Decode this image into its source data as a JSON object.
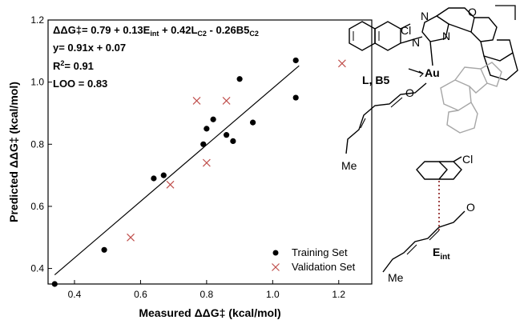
{
  "chart_data": {
    "type": "scatter",
    "xlabel": "Measured ΔΔG‡ (kcal/mol)",
    "ylabel": "Predicted ΔΔG‡ (kcal/mol)",
    "xlim": [
      0.32,
      1.3
    ],
    "ylim": [
      0.35,
      1.2
    ],
    "xticks": [
      "0.4",
      "0.6",
      "0.8",
      "1.0",
      "1.2"
    ],
    "yticks": [
      "0.4",
      "0.6",
      "0.8",
      "1.0",
      "1.2"
    ],
    "grid": false,
    "legend_position": "bottom-right",
    "fit_line": {
      "slope": 0.91,
      "intercept": 0.07,
      "x_range": [
        0.34,
        1.08
      ]
    },
    "series": [
      {
        "name": "Training Set",
        "marker": "filled-circle",
        "color": "#000000",
        "points": [
          [
            0.34,
            0.35
          ],
          [
            0.49,
            0.46
          ],
          [
            0.64,
            0.69
          ],
          [
            0.67,
            0.7
          ],
          [
            0.79,
            0.8
          ],
          [
            0.8,
            0.85
          ],
          [
            0.82,
            0.88
          ],
          [
            0.86,
            0.83
          ],
          [
            0.88,
            0.81
          ],
          [
            0.9,
            1.01
          ],
          [
            0.94,
            0.87
          ],
          [
            1.07,
            0.95
          ],
          [
            1.07,
            1.07
          ]
        ]
      },
      {
        "name": "Validation Set",
        "marker": "x",
        "color": "#c0504d",
        "points": [
          [
            0.57,
            0.5
          ],
          [
            0.69,
            0.67
          ],
          [
            0.77,
            0.94
          ],
          [
            0.8,
            0.74
          ],
          [
            0.86,
            0.94
          ],
          [
            1.21,
            1.06
          ]
        ]
      }
    ]
  },
  "annotations": {
    "equation": {
      "lhs": "ΔΔG‡= 0.79 + 0.13E",
      "sub1": "int",
      "mid1": " + 0.42L",
      "sub2": "C2",
      "mid2": " - 0.26B5",
      "sub3": "C2"
    },
    "fit": "y= 0.91x + 0.07",
    "r2_prefix": "R",
    "r2_sup": "2",
    "r2_value": "= 0.91",
    "loo": "LOO = 0.83"
  },
  "molecules": {
    "cl_top": "Cl",
    "n1": "N",
    "n2": "N",
    "n3": "N",
    "o_ring": "O",
    "au": "Au",
    "ligand_label": "L, B5",
    "o_aldehyde": "O",
    "me_top": "Me",
    "cl_bottom": "Cl",
    "o_bottom": "O",
    "me_bottom": "Me",
    "eint_main": "E",
    "eint_sub": "int"
  },
  "colors": {
    "training": "#000000",
    "validation": "#c0504d",
    "gray_ligand": "#a6a6a6",
    "dotted_bond": "#8b1a1a"
  }
}
